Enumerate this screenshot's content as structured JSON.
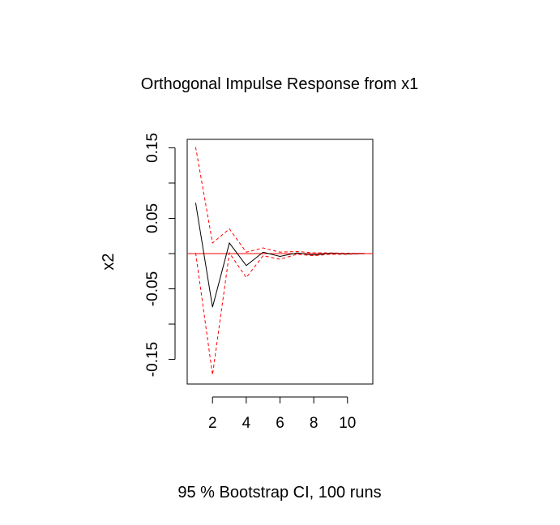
{
  "chart_data": {
    "type": "line",
    "title": "Orthogonal Impulse Response from x1",
    "xlabel": "",
    "ylabel": "x2",
    "footer": "95 % Bootstrap CI,  100 runs",
    "x": [
      1,
      2,
      3,
      4,
      5,
      6,
      7,
      8,
      9,
      10,
      11
    ],
    "xlim": [
      0.5,
      11.5
    ],
    "ylim": [
      -0.185,
      0.162
    ],
    "x_ticks": [
      "2",
      "4",
      "6",
      "8",
      "10"
    ],
    "y_ticks": [
      "-0.15",
      "-0.05",
      "0.05",
      "0.15"
    ],
    "grid": false,
    "series": [
      {
        "role": "estimate",
        "color": "#000000",
        "dash": "solid",
        "values": [
          0.072,
          -0.076,
          0.015,
          -0.017,
          0.002,
          -0.004,
          0.001,
          -0.002,
          0.0005,
          -0.0005,
          0.0002
        ]
      },
      {
        "role": "upper",
        "color": "#ff0000",
        "dash": "dashed",
        "values": [
          0.151,
          0.015,
          0.035,
          0.002,
          0.008,
          0.002,
          0.003,
          0.001,
          0.001,
          0.0005,
          0.0004
        ]
      },
      {
        "role": "lower",
        "color": "#ff0000",
        "dash": "dashed",
        "values": [
          0.001,
          -0.172,
          0.001,
          -0.034,
          -0.003,
          -0.008,
          -0.001,
          -0.003,
          -0.001,
          -0.001,
          -0.0003
        ]
      }
    ],
    "reference_line": {
      "y": 0,
      "color": "#ff0000"
    }
  }
}
